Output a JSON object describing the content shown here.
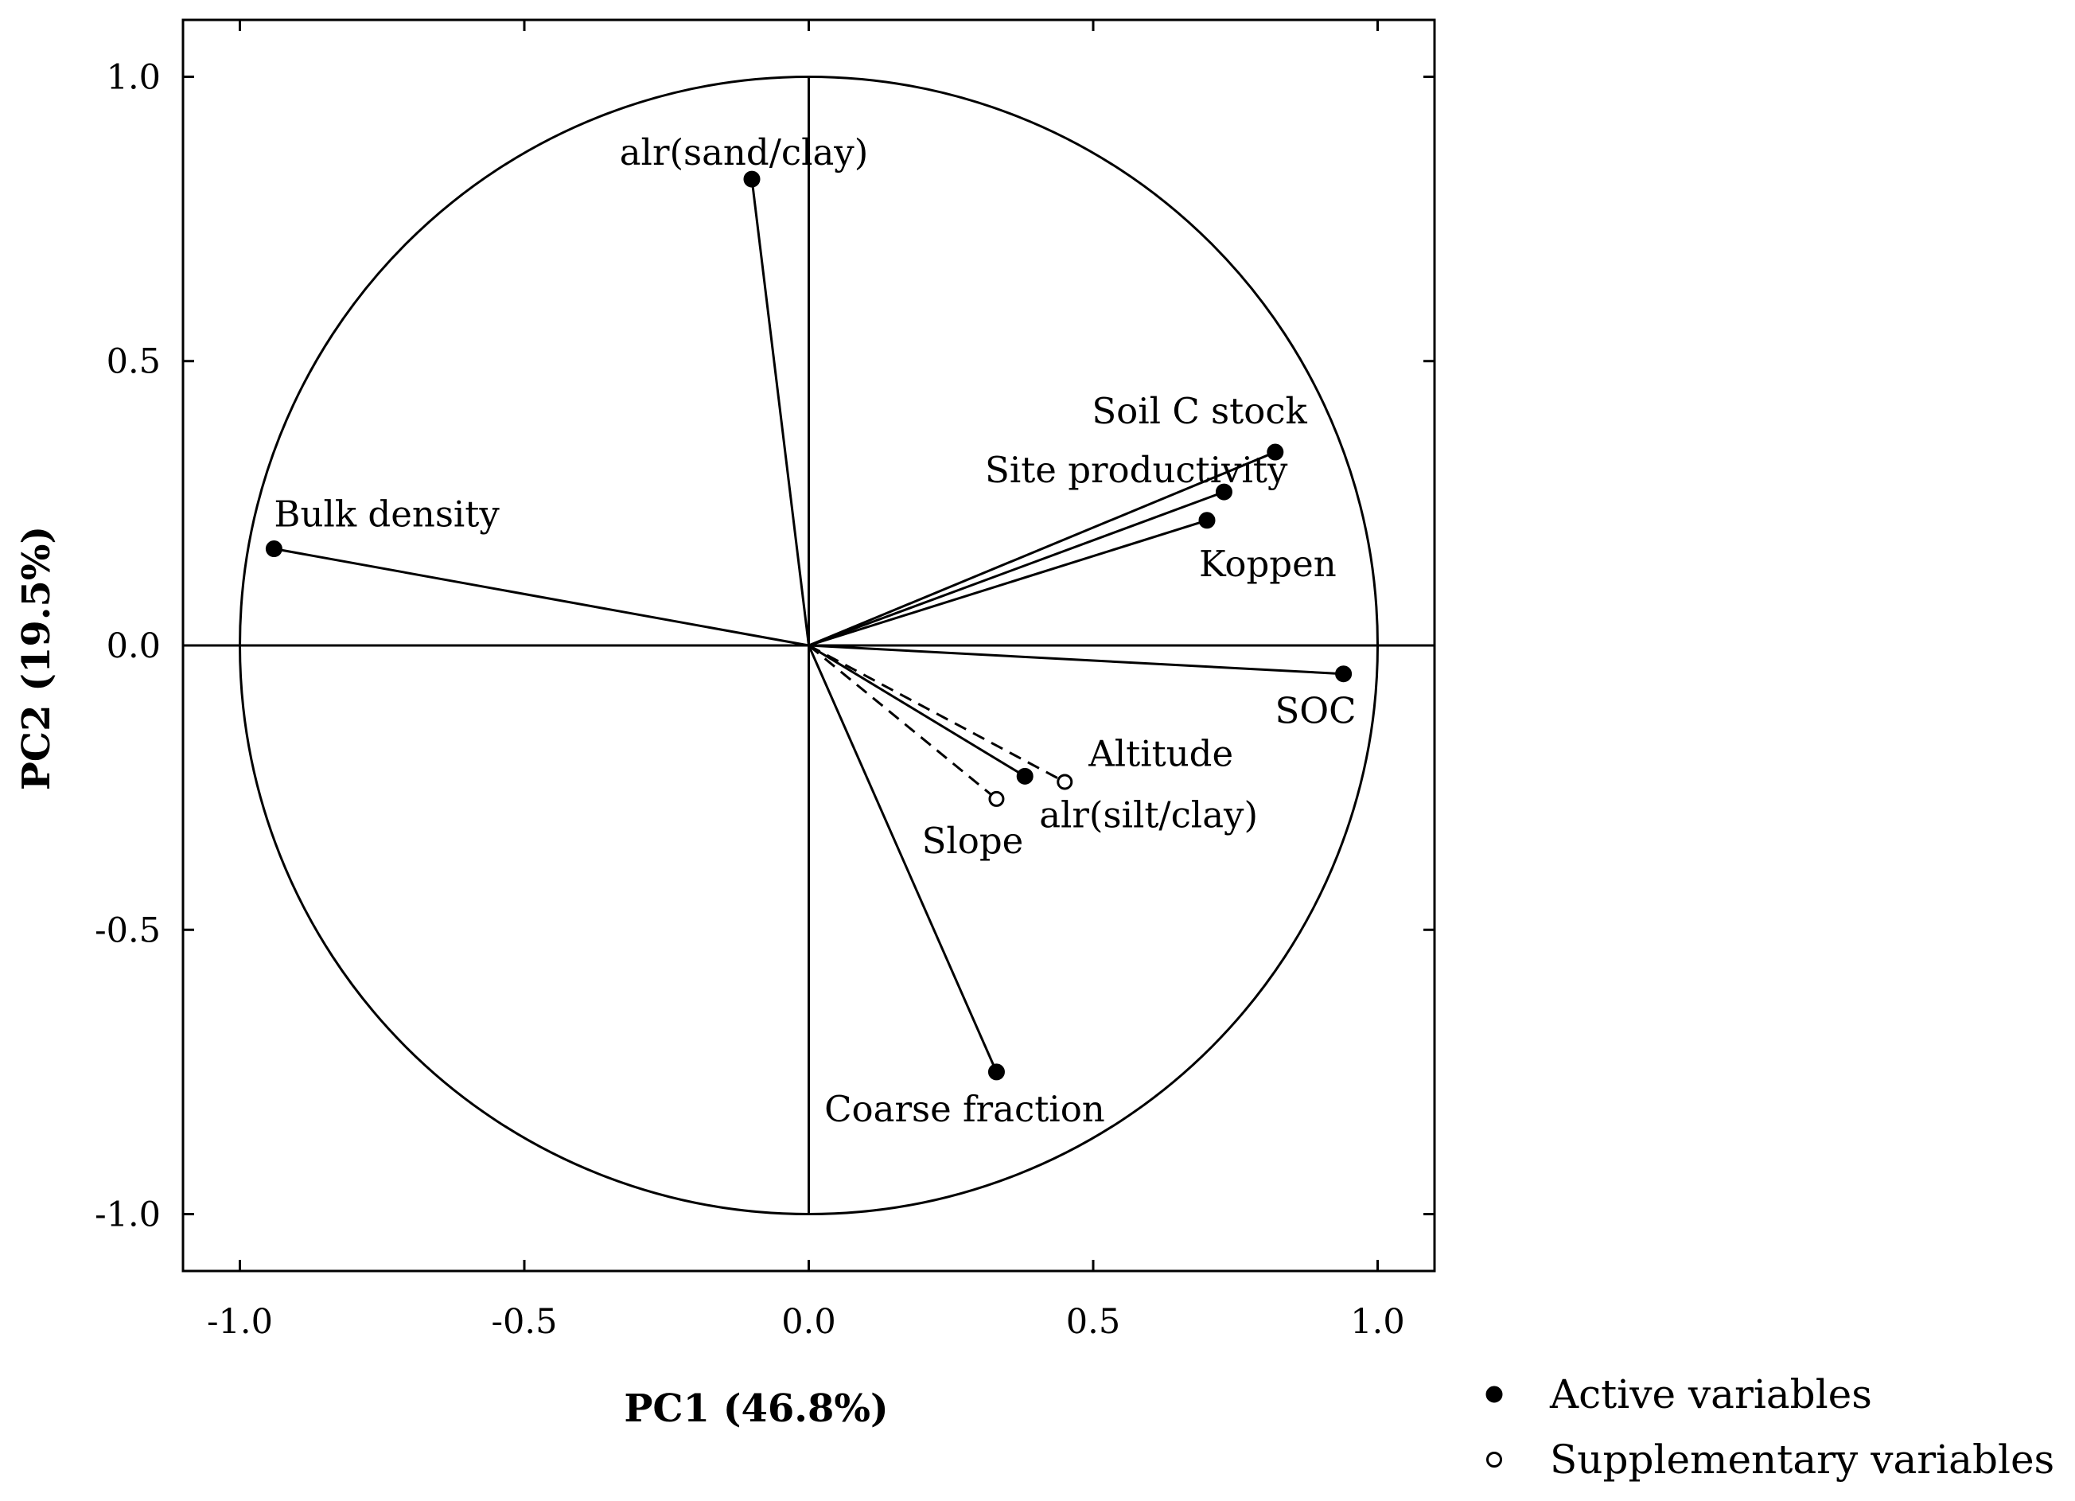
{
  "chart_data": {
    "type": "scatter",
    "subtype": "pca-correlation-circle",
    "title": "",
    "xlabel": "PC1 (46.8%)",
    "ylabel": "PC2 (19.5%)",
    "xlim": [
      -1.1,
      1.1
    ],
    "ylim": [
      -1.1,
      1.1
    ],
    "x_ticks": [
      -1.0,
      -0.5,
      0.0,
      0.5,
      1.0
    ],
    "y_ticks": [
      -1.0,
      -0.5,
      0.0,
      0.5,
      1.0
    ],
    "x_tick_labels": [
      "-1.0",
      "-0.5",
      "0.0",
      "0.5",
      "1.0"
    ],
    "y_tick_labels": [
      "-1.0",
      "-0.5",
      "0.0",
      "0.5",
      "1.0"
    ],
    "grid": false,
    "unit_circle": true,
    "legend_position": "bottom-right",
    "series": [
      {
        "name": "Active variables",
        "marker": "filled-circle",
        "line_style": "solid",
        "points": [
          {
            "label": "alr(sand/clay)",
            "x": -0.1,
            "y": 0.82
          },
          {
            "label": "Bulk density",
            "x": -0.94,
            "y": 0.17
          },
          {
            "label": "Soil C stock",
            "x": 0.82,
            "y": 0.34
          },
          {
            "label": "Site productivity",
            "x": 0.73,
            "y": 0.27
          },
          {
            "label": "Koppen",
            "x": 0.7,
            "y": 0.22
          },
          {
            "label": "SOC",
            "x": 0.94,
            "y": -0.05
          },
          {
            "label": "alr(silt/clay)",
            "x": 0.38,
            "y": -0.23
          },
          {
            "label": "Coarse fraction",
            "x": 0.33,
            "y": -0.75
          }
        ]
      },
      {
        "name": "Supplementary variables",
        "marker": "open-circle",
        "line_style": "dashed",
        "points": [
          {
            "label": "Altitude",
            "x": 0.45,
            "y": -0.24
          },
          {
            "label": "Slope",
            "x": 0.33,
            "y": -0.27
          }
        ]
      }
    ]
  }
}
